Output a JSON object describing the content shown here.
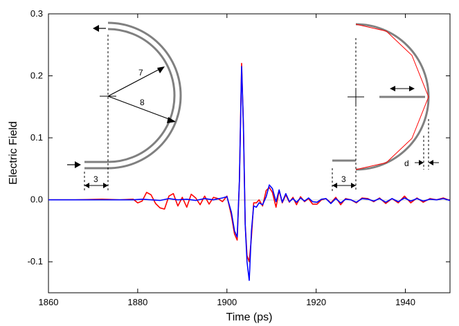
{
  "chart_data": {
    "type": "line",
    "xlabel": "Time (ps)",
    "ylabel": "Electric Field",
    "xlim": [
      1860,
      1950
    ],
    "ylim": [
      -0.15,
      0.3
    ],
    "xticks": [
      1860,
      1880,
      1900,
      1920,
      1940
    ],
    "xtick_labels": [
      "1860",
      "1880",
      "1900",
      "1920",
      "1940"
    ],
    "yticks": [
      -0.1,
      0.0,
      0.1,
      0.2,
      0.3
    ],
    "ytick_labels": [
      "-0.1",
      "0.0",
      "0.1",
      "0.2",
      "0.3"
    ],
    "grid": false,
    "series": [
      {
        "color": "#ff0000",
        "x": [
          1860,
          1866,
          1872,
          1876,
          1879,
          1880,
          1881,
          1882,
          1883,
          1884,
          1885,
          1886,
          1887,
          1888,
          1889,
          1890,
          1891,
          1892,
          1893,
          1894,
          1895,
          1896,
          1897,
          1898,
          1899,
          1900,
          1901,
          1901.7,
          1902.3,
          1902.8,
          1903.3,
          1903.7,
          1904.1,
          1904.5,
          1905.0,
          1905.5,
          1906.0,
          1906.6,
          1907.2,
          1908.0,
          1908.8,
          1909.5,
          1910.2,
          1911.0,
          1911.7,
          1912.4,
          1913.2,
          1914.0,
          1914.8,
          1915.6,
          1916.5,
          1917.4,
          1918.3,
          1919.2,
          1920.2,
          1921.2,
          1922.2,
          1923.3,
          1924.4,
          1925.5,
          1926.6,
          1927.8,
          1929.0,
          1930.3,
          1931.6,
          1932.9,
          1934.2,
          1935.6,
          1937.0,
          1938.4,
          1939.8,
          1941.2,
          1942.6,
          1944.0,
          1945.5,
          1947.0,
          1948.5,
          1950
        ],
        "y": [
          0.0,
          0.0,
          0.001,
          0.0,
          0.001,
          -0.005,
          -0.002,
          0.012,
          0.008,
          -0.006,
          -0.013,
          -0.015,
          0.006,
          0.01,
          -0.01,
          0.004,
          -0.012,
          0.009,
          0.003,
          -0.008,
          0.006,
          -0.007,
          0.004,
          0.002,
          -0.003,
          0.006,
          -0.025,
          -0.055,
          -0.065,
          0.03,
          0.22,
          0.12,
          -0.04,
          -0.09,
          -0.1,
          -0.06,
          -0.005,
          -0.005,
          0.0,
          -0.01,
          0.015,
          0.02,
          0.012,
          -0.012,
          0.015,
          -0.005,
          0.008,
          -0.004,
          0.004,
          -0.008,
          0.005,
          -0.003,
          0.002,
          -0.007,
          -0.007,
          0.0,
          0.002,
          -0.005,
          0.004,
          -0.008,
          0.002,
          0.0,
          -0.005,
          0.003,
          0.002,
          -0.003,
          0.003,
          -0.006,
          0.002,
          -0.005,
          0.006,
          -0.005,
          0.003,
          -0.004,
          0.002,
          0.0,
          0.003,
          -0.001
        ]
      },
      {
        "color": "#0000ff",
        "x": [
          1860,
          1866,
          1872,
          1876,
          1879,
          1881,
          1883,
          1885,
          1887,
          1889,
          1891,
          1893,
          1895,
          1897,
          1899,
          1900,
          1901,
          1901.7,
          1902.3,
          1902.8,
          1903.3,
          1903.7,
          1904.1,
          1904.5,
          1905.0,
          1905.5,
          1906.0,
          1906.6,
          1907.2,
          1908.0,
          1908.8,
          1909.5,
          1910.2,
          1911.0,
          1911.7,
          1912.4,
          1913.2,
          1914.0,
          1914.8,
          1915.6,
          1916.5,
          1917.4,
          1918.3,
          1919.2,
          1920.2,
          1921.2,
          1922.2,
          1923.3,
          1924.4,
          1925.5,
          1926.6,
          1927.8,
          1929.0,
          1930.3,
          1931.6,
          1932.9,
          1934.2,
          1935.6,
          1937.0,
          1938.4,
          1939.8,
          1941.2,
          1942.6,
          1944.0,
          1945.5,
          1947.0,
          1948.5,
          1950
        ],
        "y": [
          0.0,
          0.0,
          0.0,
          0.0,
          0.0,
          0.001,
          0.0,
          -0.001,
          0.002,
          0.0,
          0.001,
          -0.001,
          0.002,
          0.0,
          0.003,
          0.005,
          -0.02,
          -0.05,
          -0.06,
          0.03,
          0.215,
          0.12,
          -0.04,
          -0.1,
          -0.13,
          -0.05,
          -0.01,
          -0.012,
          -0.005,
          -0.008,
          0.005,
          0.024,
          0.018,
          -0.003,
          0.016,
          -0.004,
          0.01,
          -0.003,
          0.002,
          -0.004,
          0.003,
          -0.002,
          0.003,
          -0.003,
          -0.004,
          0.001,
          0.002,
          -0.006,
          0.002,
          -0.005,
          0.001,
          0.0,
          -0.004,
          0.002,
          0.001,
          -0.002,
          0.002,
          -0.004,
          0.002,
          -0.003,
          0.003,
          -0.002,
          0.002,
          -0.002,
          0.001,
          0.0,
          0.002,
          -0.001
        ]
      }
    ],
    "insets": [
      {
        "position": "upper-left",
        "labels": [
          "7",
          "8",
          "3"
        ]
      },
      {
        "position": "upper-right",
        "labels": [
          "3",
          "d"
        ]
      }
    ]
  }
}
